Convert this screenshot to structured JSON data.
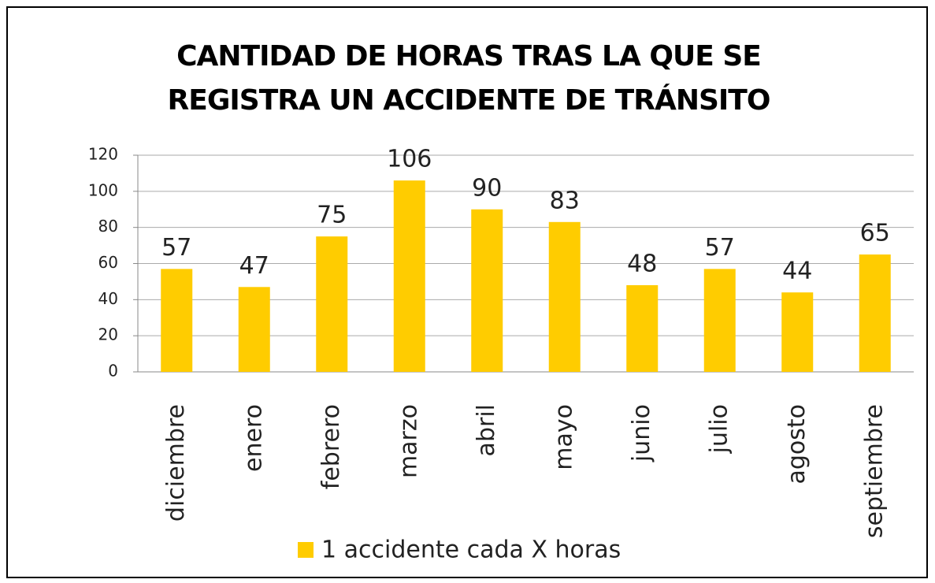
{
  "chart_data": {
    "type": "bar",
    "title": "CANTIDAD DE HORAS TRAS LA QUE SE REGISTRA UN ACCIDENTE DE TRÁNSITO",
    "categories": [
      "diciembre",
      "enero",
      "febrero",
      "marzo",
      "abril",
      "mayo",
      "junio",
      "julio",
      "agosto",
      "septiembre"
    ],
    "series": [
      {
        "name": "1 accidente cada X horas",
        "color": "#ffcc00",
        "values": [
          57,
          47,
          75,
          106,
          90,
          83,
          48,
          57,
          44,
          65
        ]
      }
    ],
    "ylim": [
      0,
      120
    ],
    "yticks": [
      0,
      20,
      40,
      60,
      80,
      100,
      120
    ],
    "grid": true,
    "legend": "bottom"
  }
}
